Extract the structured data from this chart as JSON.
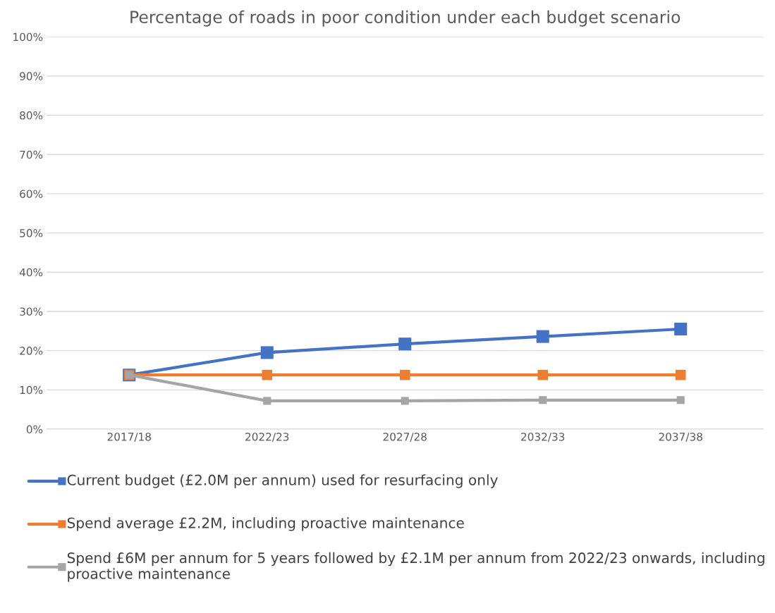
{
  "chart_data": {
    "type": "line",
    "title": "Percentage of roads in poor condition under each budget scenario",
    "categories": [
      "2017/18",
      "2022/23",
      "2027/28",
      "2032/33",
      "2037/38"
    ],
    "series": [
      {
        "name": "Current budget (£2.0M per annum) used for resurfacing only",
        "color": "#4472c4",
        "values": [
          13.8,
          19.5,
          21.7,
          23.6,
          25.5
        ]
      },
      {
        "name": "Spend average £2.2M, including proactive maintenance",
        "color": "#ed7d31",
        "values": [
          13.8,
          13.8,
          13.8,
          13.8,
          13.8
        ]
      },
      {
        "name": "Spend £6M per annum for 5 years followed by £2.1M per annum from 2022/23 onwards, including proactive maintenance",
        "color": "#a5a5a5",
        "values": [
          13.8,
          7.2,
          7.2,
          7.4,
          7.4
        ]
      }
    ],
    "ylim": [
      0,
      100
    ],
    "yticks": [
      {
        "value": 0,
        "label": "0%"
      },
      {
        "value": 10,
        "label": "10%"
      },
      {
        "value": 20,
        "label": "20%"
      },
      {
        "value": 30,
        "label": "30%"
      },
      {
        "value": 40,
        "label": "40%"
      },
      {
        "value": 50,
        "label": "50%"
      },
      {
        "value": 60,
        "label": "60%"
      },
      {
        "value": 70,
        "label": "70%"
      },
      {
        "value": 80,
        "label": "80%"
      },
      {
        "value": 90,
        "label": "90%"
      },
      {
        "value": 100,
        "label": "100%"
      }
    ],
    "grid": "y",
    "legend": "bottom",
    "marker": "square",
    "line_style": "solid"
  }
}
